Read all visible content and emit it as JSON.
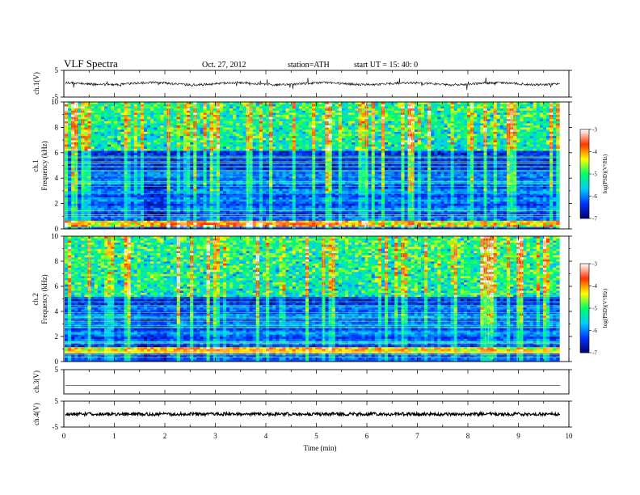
{
  "header": {
    "title": "VLF  Spectra",
    "date": "Oct. 27, 2012",
    "station": "station=ATH",
    "start": "start  UT  =   15: 40: 0"
  },
  "chart_data": {
    "type": "heatmap",
    "x": {
      "label": "Time  (min)",
      "range": [
        0,
        10
      ],
      "ticks": [
        "0",
        "1",
        "2",
        "3",
        "4",
        "5",
        "6",
        "7",
        "8",
        "9",
        "10"
      ]
    },
    "data_end_min": 9.83,
    "panels": [
      {
        "id": "ch1-wave",
        "type": "line",
        "ylabel": "ch.1(V)",
        "ylim": [
          -5,
          5
        ],
        "yticks": [
          "5",
          "-5"
        ],
        "baseline": 0
      },
      {
        "id": "ch1-spec",
        "type": "heatmap",
        "ylabel_top": "ch.1",
        "ylabel": "Frequency  (kHz)",
        "ylim": [
          0,
          10
        ],
        "yticks": [
          "0",
          "2",
          "4",
          "6",
          "8",
          "10"
        ],
        "strong_low_band_khz": [
          0.2,
          0.6
        ],
        "grass_band_khz": [
          6.2,
          10
        ]
      },
      {
        "id": "ch2-spec",
        "type": "heatmap",
        "ylabel_top": "ch.2",
        "ylabel": "Frequency  (kHz)",
        "ylim": [
          0,
          10
        ],
        "yticks": [
          "0",
          "2",
          "4",
          "6",
          "8",
          "10"
        ],
        "strong_low_band_khz": [
          0.6,
          1.2
        ],
        "grass_band_khz": [
          5.2,
          10
        ]
      },
      {
        "id": "ch3-wave",
        "type": "line",
        "ylabel": "ch.3(V)",
        "ylim": [
          -5,
          5
        ],
        "yticks": [
          "5"
        ],
        "baseline": -1.5
      },
      {
        "id": "ch4-wave",
        "type": "line",
        "ylabel": "ch.4(V)",
        "ylim": [
          -5,
          5
        ],
        "yticks": [
          "5",
          "-5"
        ],
        "baseline": 0
      }
    ],
    "colorbar": {
      "label": "log(PSD)(V²/Hz)",
      "range": [
        -7,
        -3
      ],
      "ticks": [
        "-3",
        "-4",
        "-5",
        "-6",
        "-7"
      ],
      "colors": [
        "#000066",
        "#0033ff",
        "#00ccff",
        "#00ff66",
        "#ffff00",
        "#ff3300",
        "#ffffff"
      ]
    }
  }
}
